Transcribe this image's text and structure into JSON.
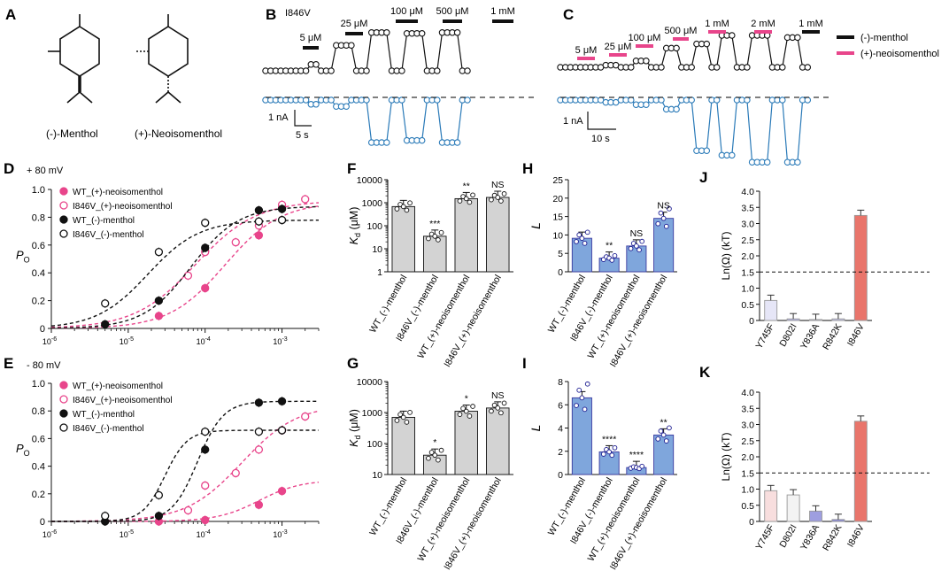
{
  "panel_letters": [
    "A",
    "B",
    "C",
    "D",
    "E",
    "F",
    "G",
    "H",
    "I",
    "J",
    "K"
  ],
  "colors": {
    "black": "#111111",
    "pink": "#e8458b",
    "blue": "#2a7ab8",
    "bar_gray": "#d3d3d3",
    "bar_blue": "#7fa6dc",
    "bar_red": "#e9756b",
    "dash": "#333333"
  },
  "panel_A": {
    "labels": [
      "(-)-Menthol",
      "(+)-Neoisomenthol"
    ]
  },
  "panel_B": {
    "variant": "I846V",
    "conc_labels": [
      "5 μM",
      "25 μM",
      "100 μM",
      "500 μM",
      "1 mM"
    ],
    "scale_current": "1 nA",
    "scale_time": "5 s"
  },
  "panel_C": {
    "conc_labels": [
      "5 μM",
      "25 μM",
      "100 μM",
      "500 μM",
      "1 mM",
      "2 mM",
      "1 mM"
    ],
    "scale_current": "1 nA",
    "scale_time": "10 s",
    "legend": [
      "(-)-menthol",
      "(+)-neoisomenthol"
    ]
  },
  "chart_data": [
    {
      "panel": "D",
      "type": "scatter",
      "voltage_label": "+ 80 mV",
      "ylabel": "P O",
      "xscale": "log",
      "xlim": [
        1e-06,
        0.003
      ],
      "ylim": [
        0,
        1.0
      ],
      "xticks": [
        "10^-6",
        "10^-5",
        "10^-4",
        "10^-3"
      ],
      "yticks": [
        "0",
        "0.2",
        "0.4",
        "0.6",
        "0.8",
        "1.0"
      ],
      "series": [
        {
          "name": "WT_(+)-neoisomenthol",
          "x": [
            2.5e-05,
            0.0001,
            0.0005,
            0.001
          ],
          "y": [
            0.09,
            0.29,
            0.67,
            0.87
          ],
          "fit": {
            "top": 0.91,
            "ec50": 0.00018,
            "n": 1.2
          },
          "style": "pink-filled"
        },
        {
          "name": "I846V_(+)-neoisomenthol",
          "x": [
            6e-05,
            0.0001,
            0.00025,
            0.0005,
            0.001,
            0.002
          ],
          "y": [
            0.38,
            0.55,
            0.62,
            0.74,
            0.89,
            0.93
          ],
          "fit": {
            "top": 0.92,
            "ec50": 7.5e-05,
            "n": 1.1
          },
          "style": "pink-open"
        },
        {
          "name": "WT_(-)-menthol",
          "x": [
            5e-06,
            2.5e-05,
            0.0001,
            0.0005,
            0.001
          ],
          "y": [
            0.03,
            0.2,
            0.58,
            0.85,
            0.86
          ],
          "fit": {
            "top": 0.88,
            "ec50": 6.5e-05,
            "n": 1.4
          },
          "style": "black-filled"
        },
        {
          "name": "I846V_(-)-menthol",
          "x": [
            5e-06,
            2.5e-05,
            0.0001,
            0.0005,
            0.001
          ],
          "y": [
            0.18,
            0.55,
            0.76,
            0.77,
            0.78
          ],
          "fit": {
            "top": 0.78,
            "ec50": 1.8e-05,
            "n": 1.3
          },
          "style": "black-open"
        }
      ]
    },
    {
      "panel": "E",
      "type": "scatter",
      "voltage_label": "- 80 mV",
      "ylabel": "P O",
      "xscale": "log",
      "xlim": [
        1e-06,
        0.003
      ],
      "ylim": [
        0,
        1.0
      ],
      "xticks": [
        "10^-6",
        "10^-5",
        "10^-4",
        "10^-3"
      ],
      "yticks": [
        "0",
        "0.2",
        "0.4",
        "0.6",
        "0.8",
        "1.0"
      ],
      "series": [
        {
          "name": "WT_(+)-neoisomenthol",
          "x": [
            2.5e-05,
            0.0001,
            0.0005,
            0.001
          ],
          "y": [
            0.0,
            0.01,
            0.12,
            0.22
          ],
          "fit": {
            "top": 0.3,
            "ec50": 0.0005,
            "n": 1.6
          },
          "style": "pink-filled"
        },
        {
          "name": "I846V_(+)-neoisomenthol",
          "x": [
            6e-05,
            0.0001,
            0.00025,
            0.0005,
            0.001,
            0.002
          ],
          "y": [
            0.08,
            0.26,
            0.35,
            0.52,
            0.66,
            0.76
          ],
          "fit": {
            "top": 0.85,
            "ec50": 0.0003,
            "n": 1.2
          },
          "style": "pink-open"
        },
        {
          "name": "WT_(-)-menthol",
          "x": [
            5e-06,
            2.5e-05,
            0.0001,
            0.0005,
            0.001
          ],
          "y": [
            0.0,
            0.04,
            0.52,
            0.86,
            0.87
          ],
          "fit": {
            "top": 0.87,
            "ec50": 8e-05,
            "n": 2.6
          },
          "style": "black-filled"
        },
        {
          "name": "I846V_(-)-menthol",
          "x": [
            5e-06,
            2.5e-05,
            0.0001,
            0.0005,
            0.001
          ],
          "y": [
            0.04,
            0.19,
            0.65,
            0.65,
            0.66
          ],
          "fit": {
            "top": 0.66,
            "ec50": 3e-05,
            "n": 3.0
          },
          "style": "black-open"
        }
      ]
    },
    {
      "panel": "F",
      "type": "bar",
      "ylabel": "Kd (μM)",
      "yscale": "log",
      "ylim": [
        1,
        10000
      ],
      "yticks": [
        "1",
        "10",
        "100",
        "1000",
        "10000"
      ],
      "categories": [
        "WT_(-)-menthol",
        "I846V_(-)-menthol",
        "WT_(+)-neoisomenthol",
        "I846V_(+)-neoisomenthol"
      ],
      "values": [
        680,
        35,
        1500,
        1700
      ],
      "significance": [
        "",
        "***",
        "**",
        "NS"
      ],
      "fills": [
        "gray",
        "gray",
        "gray",
        "gray"
      ]
    },
    {
      "panel": "G",
      "type": "bar",
      "ylabel": "Kd (μM)",
      "yscale": "log",
      "ylim": [
        10,
        10000
      ],
      "yticks": [
        "10",
        "100",
        "1000",
        "10000"
      ],
      "categories": [
        "WT_(-)-menthol",
        "I846V_(-)-menthol",
        "WT_(+)-neoisomenthol",
        "I846V_(+)-neoisomenthol"
      ],
      "values": [
        700,
        42,
        1100,
        1400
      ],
      "significance": [
        "",
        "*",
        "*",
        "NS"
      ],
      "fills": [
        "gray",
        "gray",
        "gray",
        "gray"
      ]
    },
    {
      "panel": "H",
      "type": "bar",
      "ylabel": "L",
      "ylim": [
        0,
        25
      ],
      "yticks": [
        "0",
        "5",
        "10",
        "15",
        "20",
        "25"
      ],
      "categories": [
        "WT_(-)-menthol",
        "I846V_(-)-menthol",
        "WT_(+)-neoisomenthol",
        "I846V_(+)-neoisomenthol"
      ],
      "values": [
        9.1,
        3.7,
        7.0,
        14.5
      ],
      "significance": [
        "",
        "**",
        "NS",
        "NS"
      ],
      "fills": [
        "blue",
        "blue",
        "blue",
        "blue"
      ]
    },
    {
      "panel": "I",
      "type": "bar",
      "ylabel": "L",
      "ylim": [
        0,
        8
      ],
      "yticks": [
        "0",
        "2",
        "4",
        "6",
        "8"
      ],
      "categories": [
        "WT_(-)-menthol",
        "I846V_(-)-menthol",
        "WT_(+)-neoisomenthol",
        "I846V_(+)-neoisomenthol"
      ],
      "values": [
        6.6,
        1.95,
        0.6,
        3.4
      ],
      "significance": [
        "",
        "****",
        "****",
        "**"
      ],
      "fills": [
        "blue",
        "blue",
        "blue",
        "blue"
      ]
    },
    {
      "panel": "J",
      "type": "bar",
      "ylabel": "Ln(Ω) (kT)",
      "ylim": [
        0,
        4.0
      ],
      "yticks": [
        "0",
        "0.5",
        "1.0",
        "1.5",
        "2.0",
        "2.5",
        "3.0",
        "3.5",
        "4.0"
      ],
      "categories": [
        "Y745F",
        "D802I",
        "Y836A",
        "R842K",
        "I846V"
      ],
      "values": [
        0.62,
        0.05,
        0.03,
        0.05,
        3.25
      ],
      "threshold": 1.5,
      "fills": [
        "#e6e6f7",
        "#b8b8ee",
        "#c5c5ee",
        "#c5c5ee",
        "#e9756b"
      ]
    },
    {
      "panel": "K",
      "type": "bar",
      "ylabel": "Ln(Ω) (kT)",
      "ylim": [
        0,
        4.0
      ],
      "yticks": [
        "0",
        "0.5",
        "1.0",
        "1.5",
        "2.0",
        "2.5",
        "3.0",
        "3.5",
        "4.0"
      ],
      "categories": [
        "Y745F",
        "D802I",
        "Y836A",
        "R842K",
        "I846V"
      ],
      "values": [
        0.95,
        0.82,
        0.32,
        0.06,
        3.1
      ],
      "threshold": 1.5,
      "fills": [
        "#f8dede",
        "#f3f3f3",
        "#9e9ee0",
        "#8888d8",
        "#e9756b"
      ]
    }
  ]
}
